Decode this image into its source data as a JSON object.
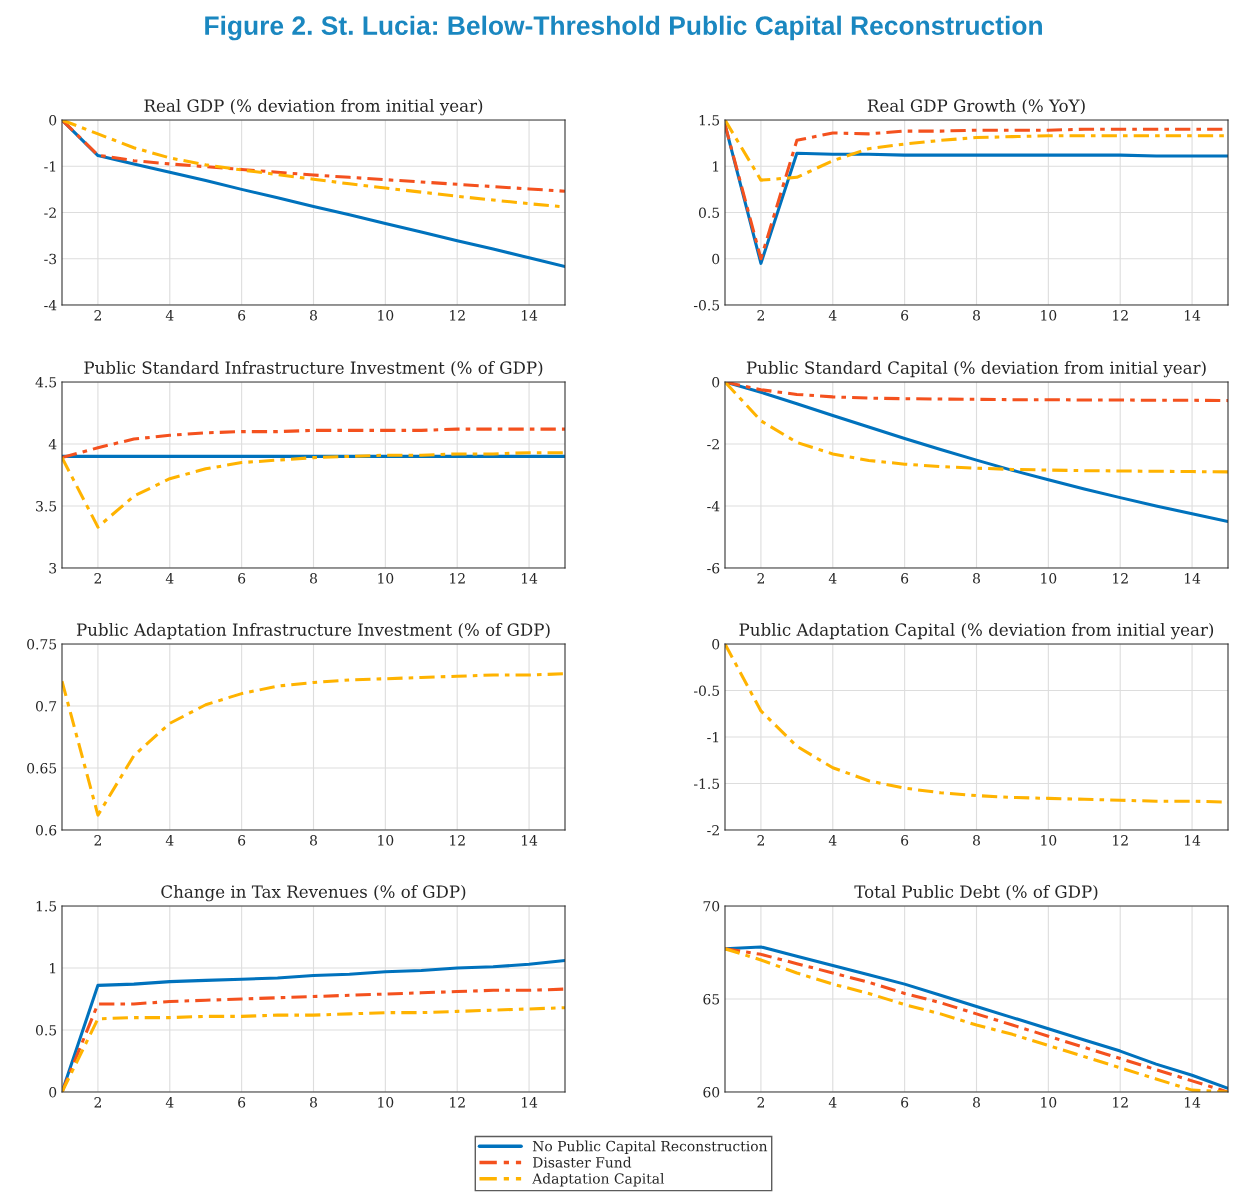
{
  "chart_data": [
    {
      "type": "line",
      "title": "Real GDP (% deviation from initial year)",
      "annotations": [
        "Figure 2. St. Lucia: Below-Threshold Public Capital Reconstruction"
      ],
      "legend": "bottom",
      "x": [
        1,
        2,
        3,
        4,
        5,
        6,
        7,
        8,
        9,
        10,
        11,
        12,
        13,
        14,
        15
      ],
      "xlim": [
        1,
        15
      ],
      "xticks": [
        2,
        4,
        6,
        8,
        10,
        12,
        14
      ],
      "ylim": [
        -4,
        0
      ],
      "yticks": [
        -4,
        -3,
        -2,
        -1,
        0
      ],
      "grid": true,
      "series": [
        {
          "name": "No Public Capital Reconstruction",
          "color": "#0072bd",
          "line_style": "solid",
          "values": [
            0,
            -0.77,
            -0.95,
            -1.13,
            -1.31,
            -1.5,
            -1.68,
            -1.87,
            -2.05,
            -2.24,
            -2.42,
            -2.61,
            -2.79,
            -2.98,
            -3.17
          ]
        },
        {
          "name": "Disaster Fund",
          "color": "#f4511e",
          "line_style": "dashed",
          "values": [
            0,
            -0.76,
            -0.88,
            -0.95,
            -1.01,
            -1.07,
            -1.13,
            -1.19,
            -1.24,
            -1.29,
            -1.34,
            -1.39,
            -1.44,
            -1.49,
            -1.54
          ]
        },
        {
          "name": "Adaptation Capital",
          "color": "#ffb300",
          "line_style": "dashed",
          "values": [
            0,
            -0.3,
            -0.6,
            -0.82,
            -0.97,
            -1.08,
            -1.18,
            -1.28,
            -1.38,
            -1.47,
            -1.56,
            -1.65,
            -1.73,
            -1.81,
            -1.88
          ]
        }
      ]
    },
    {
      "type": "line",
      "title": "Real GDP Growth (% YoY)",
      "x": [
        1,
        2,
        3,
        4,
        5,
        6,
        7,
        8,
        9,
        10,
        11,
        12,
        13,
        14,
        15
      ],
      "xlim": [
        1,
        15
      ],
      "xticks": [
        2,
        4,
        6,
        8,
        10,
        12,
        14
      ],
      "ylim": [
        -0.5,
        1.5
      ],
      "yticks": [
        -0.5,
        0,
        0.5,
        1,
        1.5
      ],
      "grid": true,
      "series": [
        {
          "color": "#0072bd",
          "line_style": "solid",
          "values": [
            1.45,
            -0.05,
            1.14,
            1.13,
            1.13,
            1.12,
            1.12,
            1.12,
            1.12,
            1.12,
            1.12,
            1.12,
            1.11,
            1.11,
            1.11
          ]
        },
        {
          "color": "#f4511e",
          "line_style": "dashed",
          "values": [
            1.45,
            0.0,
            1.28,
            1.36,
            1.35,
            1.38,
            1.38,
            1.39,
            1.39,
            1.39,
            1.4,
            1.4,
            1.4,
            1.4,
            1.4
          ]
        },
        {
          "color": "#ffb300",
          "line_style": "dashed",
          "values": [
            1.5,
            0.85,
            0.88,
            1.06,
            1.19,
            1.24,
            1.28,
            1.31,
            1.32,
            1.33,
            1.33,
            1.33,
            1.33,
            1.33,
            1.33
          ]
        }
      ]
    },
    {
      "type": "line",
      "title": "Public Standard Infrastructure Investment (% of GDP)",
      "x": [
        1,
        2,
        3,
        4,
        5,
        6,
        7,
        8,
        9,
        10,
        11,
        12,
        13,
        14,
        15
      ],
      "xlim": [
        1,
        15
      ],
      "xticks": [
        2,
        4,
        6,
        8,
        10,
        12,
        14
      ],
      "ylim": [
        3,
        4.5
      ],
      "yticks": [
        3,
        3.5,
        4,
        4.5
      ],
      "grid": true,
      "series": [
        {
          "color": "#0072bd",
          "line_style": "solid",
          "values": [
            3.9,
            3.9,
            3.9,
            3.9,
            3.9,
            3.9,
            3.9,
            3.9,
            3.9,
            3.9,
            3.9,
            3.9,
            3.9,
            3.9,
            3.9
          ]
        },
        {
          "color": "#f4511e",
          "line_style": "dashed",
          "values": [
            3.89,
            3.97,
            4.04,
            4.07,
            4.09,
            4.1,
            4.1,
            4.11,
            4.11,
            4.11,
            4.11,
            4.12,
            4.12,
            4.12,
            4.12
          ]
        },
        {
          "color": "#ffb300",
          "line_style": "dashed",
          "values": [
            3.89,
            3.33,
            3.58,
            3.72,
            3.8,
            3.85,
            3.87,
            3.89,
            3.9,
            3.91,
            3.91,
            3.92,
            3.92,
            3.93,
            3.93
          ]
        }
      ]
    },
    {
      "type": "line",
      "title": "Public Standard Capital (% deviation from initial year)",
      "x": [
        1,
        2,
        3,
        4,
        5,
        6,
        7,
        8,
        9,
        10,
        11,
        12,
        13,
        14,
        15
      ],
      "xlim": [
        1,
        15
      ],
      "xticks": [
        2,
        4,
        6,
        8,
        10,
        12,
        14
      ],
      "ylim": [
        -6,
        0
      ],
      "yticks": [
        -6,
        -4,
        -2,
        0
      ],
      "grid": true,
      "series": [
        {
          "color": "#0072bd",
          "line_style": "solid",
          "values": [
            0,
            -0.33,
            -0.7,
            -1.08,
            -1.45,
            -1.82,
            -2.18,
            -2.52,
            -2.85,
            -3.15,
            -3.45,
            -3.73,
            -4.0,
            -4.25,
            -4.5
          ]
        },
        {
          "color": "#f4511e",
          "line_style": "dashed",
          "values": [
            0,
            -0.25,
            -0.4,
            -0.48,
            -0.52,
            -0.54,
            -0.55,
            -0.56,
            -0.57,
            -0.57,
            -0.58,
            -0.58,
            -0.59,
            -0.59,
            -0.6
          ]
        },
        {
          "color": "#ffb300",
          "line_style": "dashed",
          "values": [
            0,
            -1.25,
            -1.95,
            -2.32,
            -2.53,
            -2.65,
            -2.73,
            -2.78,
            -2.82,
            -2.84,
            -2.86,
            -2.87,
            -2.88,
            -2.89,
            -2.9
          ]
        }
      ]
    },
    {
      "type": "line",
      "title": "Public Adaptation Infrastructure Investment (% of GDP)",
      "x": [
        1,
        2,
        3,
        4,
        5,
        6,
        7,
        8,
        9,
        10,
        11,
        12,
        13,
        14,
        15
      ],
      "xlim": [
        1,
        15
      ],
      "xticks": [
        2,
        4,
        6,
        8,
        10,
        12,
        14
      ],
      "ylim": [
        0.6,
        0.75
      ],
      "yticks": [
        0.6,
        0.65,
        0.7,
        0.75
      ],
      "grid": true,
      "series": [
        {
          "color": "#ffb300",
          "line_style": "dashed",
          "values": [
            0.72,
            0.612,
            0.66,
            0.686,
            0.701,
            0.71,
            0.716,
            0.719,
            0.721,
            0.722,
            0.723,
            0.724,
            0.725,
            0.725,
            0.726
          ]
        }
      ]
    },
    {
      "type": "line",
      "title": "Public Adaptation Capital (% deviation from initial year)",
      "x": [
        1,
        2,
        3,
        4,
        5,
        6,
        7,
        8,
        9,
        10,
        11,
        12,
        13,
        14,
        15
      ],
      "xlim": [
        1,
        15
      ],
      "xticks": [
        2,
        4,
        6,
        8,
        10,
        12,
        14
      ],
      "ylim": [
        -2,
        0
      ],
      "yticks": [
        -2,
        -1.5,
        -1,
        -0.5,
        0
      ],
      "grid": true,
      "series": [
        {
          "color": "#ffb300",
          "line_style": "dashed",
          "values": [
            0,
            -0.72,
            -1.1,
            -1.33,
            -1.47,
            -1.55,
            -1.6,
            -1.63,
            -1.65,
            -1.66,
            -1.67,
            -1.68,
            -1.69,
            -1.69,
            -1.7
          ]
        }
      ]
    },
    {
      "type": "line",
      "title": "Change in Tax Revenues (% of GDP)",
      "x": [
        1,
        2,
        3,
        4,
        5,
        6,
        7,
        8,
        9,
        10,
        11,
        12,
        13,
        14,
        15
      ],
      "xlim": [
        1,
        15
      ],
      "xticks": [
        2,
        4,
        6,
        8,
        10,
        12,
        14
      ],
      "ylim": [
        0,
        1.5
      ],
      "yticks": [
        0,
        0.5,
        1,
        1.5
      ],
      "grid": true,
      "series": [
        {
          "color": "#0072bd",
          "line_style": "solid",
          "values": [
            0,
            0.86,
            0.87,
            0.89,
            0.9,
            0.91,
            0.92,
            0.94,
            0.95,
            0.97,
            0.98,
            1.0,
            1.01,
            1.03,
            1.06
          ]
        },
        {
          "color": "#f4511e",
          "line_style": "dashed",
          "values": [
            0,
            0.71,
            0.71,
            0.73,
            0.74,
            0.75,
            0.76,
            0.77,
            0.78,
            0.79,
            0.8,
            0.81,
            0.82,
            0.82,
            0.83
          ]
        },
        {
          "color": "#ffb300",
          "line_style": "dashed",
          "values": [
            0,
            0.59,
            0.6,
            0.6,
            0.61,
            0.61,
            0.62,
            0.62,
            0.63,
            0.64,
            0.64,
            0.65,
            0.66,
            0.67,
            0.68
          ]
        }
      ]
    },
    {
      "type": "line",
      "title": "Total Public Debt (% of GDP)",
      "x": [
        1,
        2,
        3,
        4,
        5,
        6,
        7,
        8,
        9,
        10,
        11,
        12,
        13,
        14,
        15
      ],
      "xlim": [
        1,
        15
      ],
      "xticks": [
        2,
        4,
        6,
        8,
        10,
        12,
        14
      ],
      "ylim": [
        60,
        70
      ],
      "yticks": [
        60,
        65,
        70
      ],
      "grid": true,
      "series": [
        {
          "color": "#0072bd",
          "line_style": "solid",
          "values": [
            67.7,
            67.8,
            67.3,
            66.8,
            66.3,
            65.8,
            65.2,
            64.6,
            64.0,
            63.4,
            62.8,
            62.2,
            61.5,
            60.9,
            60.2
          ]
        },
        {
          "color": "#f4511e",
          "line_style": "dashed",
          "values": [
            67.7,
            67.4,
            66.9,
            66.4,
            65.9,
            65.3,
            64.8,
            64.2,
            63.6,
            63.0,
            62.4,
            61.8,
            61.2,
            60.6,
            60.0
          ]
        },
        {
          "color": "#ffb300",
          "line_style": "dashed",
          "values": [
            67.7,
            67.1,
            66.4,
            65.8,
            65.3,
            64.7,
            64.2,
            63.6,
            63.1,
            62.5,
            61.9,
            61.3,
            60.7,
            60.1,
            60.0
          ]
        }
      ]
    }
  ]
}
